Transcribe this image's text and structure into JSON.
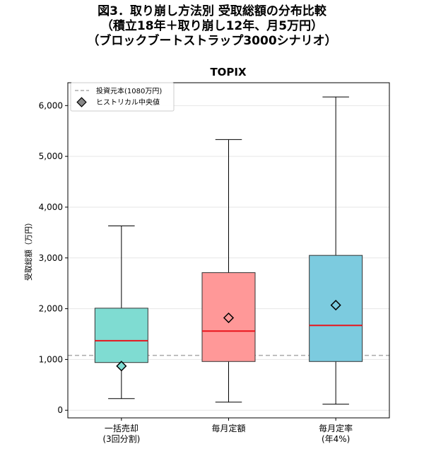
{
  "figure_title": {
    "line1": "図3．取り崩し方法別 受取総額の分布比較",
    "line2": "（積立18年＋取り崩し12年、月5万円）",
    "line3": "（ブロックブートストラップ3000シナリオ）"
  },
  "colors": {
    "lump": "#7fdcd2",
    "fixed": "#ff9898",
    "rate": "#7ccbdf",
    "median": "#e8141c",
    "principal_line": "#aaaaaa",
    "marker": "#888888"
  },
  "chart_data": {
    "type": "box",
    "title": "TOPIX",
    "ylabel": "受取総額（万円）",
    "ylim": [
      -150,
      6450
    ],
    "yticks": [
      0,
      1000,
      2000,
      3000,
      4000,
      5000,
      6000
    ],
    "ytick_labels": [
      "0",
      "1,000",
      "2,000",
      "3,000",
      "4,000",
      "5,000",
      "6,000"
    ],
    "grid": true,
    "legend_position": "top-left",
    "reference_line": {
      "value": 1080,
      "label": "投資元本(1080万円)"
    },
    "marker_label": "ヒストリカル中央値",
    "categories": [
      {
        "label_line1": "一括売却",
        "label_line2": "(3回分割)"
      },
      {
        "label_line1": "毎月定額",
        "label_line2": ""
      },
      {
        "label_line1": "毎月定率",
        "label_line2": "(年4%)"
      }
    ],
    "boxes": [
      {
        "whisker_low": 230,
        "q1": 940,
        "median": 1370,
        "q3": 2010,
        "whisker_high": 3630,
        "historical_median": 870
      },
      {
        "whisker_low": 160,
        "q1": 960,
        "median": 1560,
        "q3": 2710,
        "whisker_high": 5330,
        "historical_median": 1820
      },
      {
        "whisker_low": 120,
        "q1": 960,
        "median": 1670,
        "q3": 3050,
        "whisker_high": 6170,
        "historical_median": 2070
      }
    ]
  }
}
